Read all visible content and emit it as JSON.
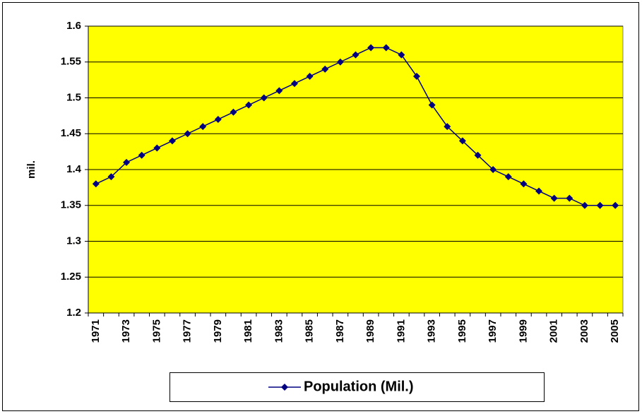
{
  "chart_data": {
    "type": "line",
    "categories": [
      "1971",
      null,
      "1973",
      null,
      "1975",
      null,
      "1977",
      null,
      "1979",
      null,
      "1981",
      null,
      "1983",
      null,
      "1985",
      null,
      "1987",
      null,
      "1989",
      null,
      "1991",
      null,
      "1993",
      null,
      "1995",
      null,
      "1997",
      null,
      "1999",
      null,
      "2001",
      null,
      "2003",
      null,
      "2005"
    ],
    "series": [
      {
        "name": "Population (Mil.)",
        "color": "#000080",
        "values": [
          1.38,
          1.39,
          1.41,
          1.42,
          1.43,
          1.44,
          1.45,
          1.46,
          1.47,
          1.48,
          1.49,
          1.5,
          1.51,
          1.52,
          1.53,
          1.54,
          1.55,
          1.56,
          1.57,
          1.57,
          1.56,
          1.53,
          1.49,
          1.46,
          1.44,
          1.42,
          1.4,
          1.39,
          1.38,
          1.37,
          1.36,
          1.36,
          1.35,
          1.35,
          1.35
        ]
      }
    ],
    "y_label": "mil.",
    "ylim": [
      1.2,
      1.6
    ],
    "yticks": [
      1.2,
      1.25,
      1.3,
      1.35,
      1.4,
      1.45,
      1.5,
      1.55,
      1.6
    ],
    "grid": true,
    "background": "#ffff00",
    "legend": "bottom"
  }
}
